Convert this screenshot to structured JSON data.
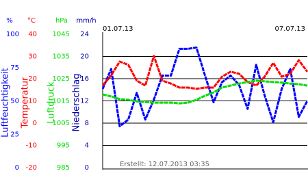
{
  "chart_data": {
    "type": "line",
    "x_labels": [
      "01.07.13",
      "07.07.13"
    ],
    "note": "Erstellt: 12.07.2013 03:35",
    "grid": true,
    "axes": [
      {
        "unit": "%",
        "label": "Luftfeuchtigkeit",
        "color": "#0000ff",
        "ylim": [
          0,
          100
        ],
        "yticks": [
          100,
          75,
          50,
          25,
          0
        ],
        "values": [
          59,
          74,
          31,
          36,
          56,
          36,
          51,
          69,
          69,
          89,
          89,
          90,
          69,
          49,
          64,
          69,
          62,
          44,
          77,
          54,
          34,
          59,
          74,
          38,
          50
        ]
      },
      {
        "unit": "°C",
        "label": "Temperatur",
        "color": "#ff0000",
        "ylim": [
          -20,
          40
        ],
        "yticks": [
          40,
          30,
          20,
          10,
          0,
          -10,
          -20
        ],
        "values": [
          16.9,
          21.5,
          27.7,
          26.2,
          19.1,
          16.9,
          30.2,
          19.1,
          17.8,
          16.0,
          16.0,
          15.4,
          16.0,
          16.0,
          20.9,
          23.1,
          22.2,
          18.5,
          16.9,
          20.9,
          27.1,
          20.9,
          22.2,
          28.3,
          23.1
        ]
      },
      {
        "unit": "hPa",
        "label": "Luftdruck",
        "color": "#00dd00",
        "ylim": [
          985,
          1045
        ],
        "yticks": [
          1045,
          1035,
          1025,
          1015,
          1005,
          995,
          985
        ],
        "values": [
          1017.9,
          1017.0,
          1015.8,
          1015.5,
          1014.8,
          1014.5,
          1014.2,
          1014.2,
          1014.2,
          1013.9,
          1014.2,
          1015.5,
          1017.3,
          1018.8,
          1021.0,
          1021.9,
          1022.8,
          1023.5,
          1024.1,
          1023.8,
          1023.5,
          1023.2,
          1022.8,
          1022.5,
          1021.9
        ]
      },
      {
        "unit": "mm/h",
        "label": "Niederschlag",
        "color": "#0000aa",
        "ylim": [
          0,
          24
        ],
        "yticks": [
          24,
          20,
          16,
          12,
          8,
          4,
          0
        ]
      }
    ]
  }
}
